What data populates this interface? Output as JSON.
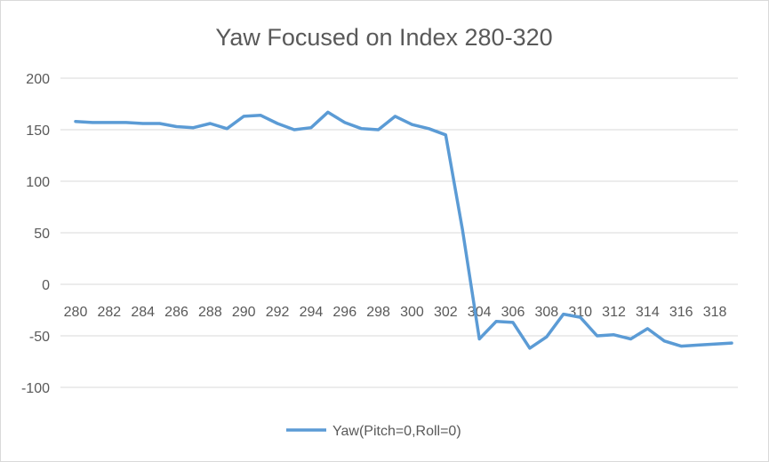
{
  "chart_data": {
    "type": "line",
    "title": "Yaw Focused on Index 280-320",
    "xlabel": "",
    "ylabel": "",
    "ylim": [
      -100,
      200
    ],
    "y_ticks": [
      200,
      150,
      100,
      50,
      0,
      -50,
      -100
    ],
    "x_tick_labels": [
      "280",
      "282",
      "284",
      "286",
      "288",
      "290",
      "292",
      "294",
      "296",
      "298",
      "300",
      "302",
      "304",
      "306",
      "308",
      "310",
      "312",
      "314",
      "316",
      "318"
    ],
    "grid": true,
    "legend_position": "bottom",
    "series": [
      {
        "name": "Yaw(Pitch=0,Roll=0)",
        "color": "#5b9bd5",
        "x": [
          280,
          281,
          282,
          283,
          284,
          285,
          286,
          287,
          288,
          289,
          290,
          291,
          292,
          293,
          294,
          295,
          296,
          297,
          298,
          299,
          300,
          301,
          302,
          303,
          304,
          305,
          306,
          307,
          308,
          309,
          310,
          311,
          312,
          313,
          314,
          315,
          316,
          317,
          318,
          319
        ],
        "values": [
          158,
          157,
          157,
          157,
          156,
          156,
          153,
          152,
          156,
          151,
          163,
          164,
          156,
          150,
          152,
          167,
          157,
          151,
          150,
          163,
          155,
          151,
          145,
          53,
          -53,
          -36,
          -37,
          -62,
          -51,
          -29,
          -32,
          -50,
          -49,
          -53,
          -43,
          -55,
          -60,
          -59,
          -58,
          -57
        ]
      }
    ]
  }
}
